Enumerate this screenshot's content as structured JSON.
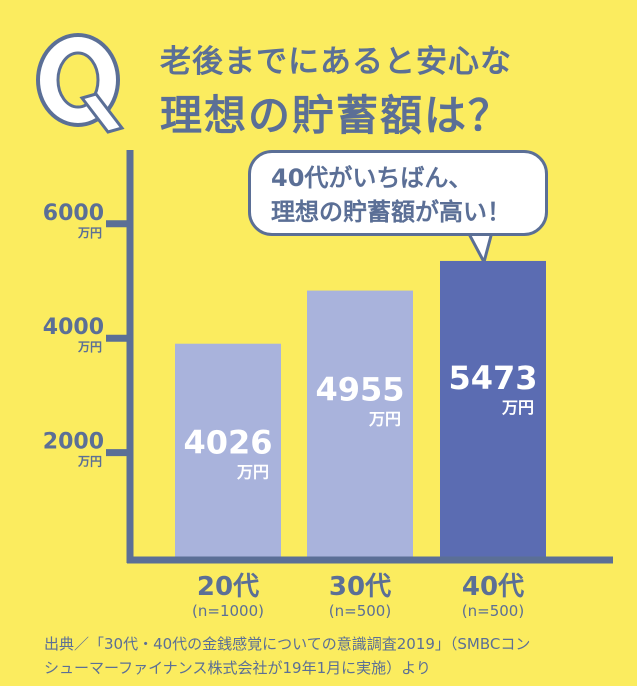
{
  "title": {
    "q_mark": "Q",
    "line1": "老後までにあると安心な",
    "line2": "理想の貯蓄額は？"
  },
  "callout": {
    "line1": "40代がいちばん、",
    "line2": "理想の貯蓄額が高い！"
  },
  "chart_data": {
    "type": "bar",
    "categories": [
      "20代",
      "30代",
      "40代"
    ],
    "sample_sizes": [
      "(n=1000)",
      "(n=500)",
      "(n=500)"
    ],
    "values": [
      4026,
      4955,
      5473
    ],
    "value_labels": [
      "4026",
      "4955",
      "5473"
    ],
    "unit": "万円",
    "y_ticks": [
      "2000",
      "4000",
      "6000"
    ],
    "ylim": [
      0,
      6500
    ],
    "colors": {
      "normal": "#a9b3dc",
      "highlight": "#5b6cb2",
      "axis": "#5b6f96"
    },
    "highlight_index": 2
  },
  "footnote": {
    "line1": "出典／「30代・40代の金銭感覚についての意識調査2019」（SMBCコン",
    "line2": "シューマーファイナンス株式会社が19年1月に実施）より"
  }
}
